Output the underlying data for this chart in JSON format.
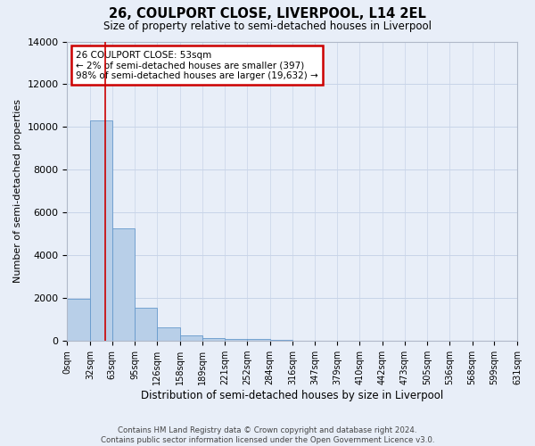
{
  "title1": "26, COULPORT CLOSE, LIVERPOOL, L14 2EL",
  "title2": "Size of property relative to semi-detached houses in Liverpool",
  "xlabel": "Distribution of semi-detached houses by size in Liverpool",
  "ylabel": "Number of semi-detached properties",
  "annotation_title": "26 COULPORT CLOSE: 53sqm",
  "annotation_line1": "← 2% of semi-detached houses are smaller (397)",
  "annotation_line2": "98% of semi-detached houses are larger (19,632) →",
  "footer1": "Contains HM Land Registry data © Crown copyright and database right 2024.",
  "footer2": "Contains public sector information licensed under the Open Government Licence v3.0.",
  "bin_edges": [
    0,
    32,
    63,
    95,
    126,
    158,
    189,
    221,
    252,
    284,
    316,
    347,
    379,
    410,
    442,
    473,
    505,
    536,
    568,
    599,
    631
  ],
  "bin_labels": [
    "0sqm",
    "32sqm",
    "63sqm",
    "95sqm",
    "126sqm",
    "158sqm",
    "189sqm",
    "221sqm",
    "252sqm",
    "284sqm",
    "316sqm",
    "347sqm",
    "379sqm",
    "410sqm",
    "442sqm",
    "473sqm",
    "505sqm",
    "536sqm",
    "568sqm",
    "599sqm",
    "631sqm"
  ],
  "bar_heights": [
    1950,
    10300,
    5250,
    1550,
    650,
    250,
    150,
    100,
    75,
    50,
    0,
    0,
    0,
    0,
    0,
    0,
    0,
    0,
    0,
    0
  ],
  "bar_color": "#b8cfe8",
  "bar_edge_color": "#6699cc",
  "vline_x": 53,
  "vline_color": "#cc0000",
  "ylim": [
    0,
    14000
  ],
  "yticks": [
    0,
    2000,
    4000,
    6000,
    8000,
    10000,
    12000,
    14000
  ],
  "annotation_box_color": "#ffffff",
  "annotation_box_edge": "#cc0000",
  "grid_color": "#c8d4e8",
  "background_color": "#e8eef8",
  "spine_color": "#b0b8c8"
}
